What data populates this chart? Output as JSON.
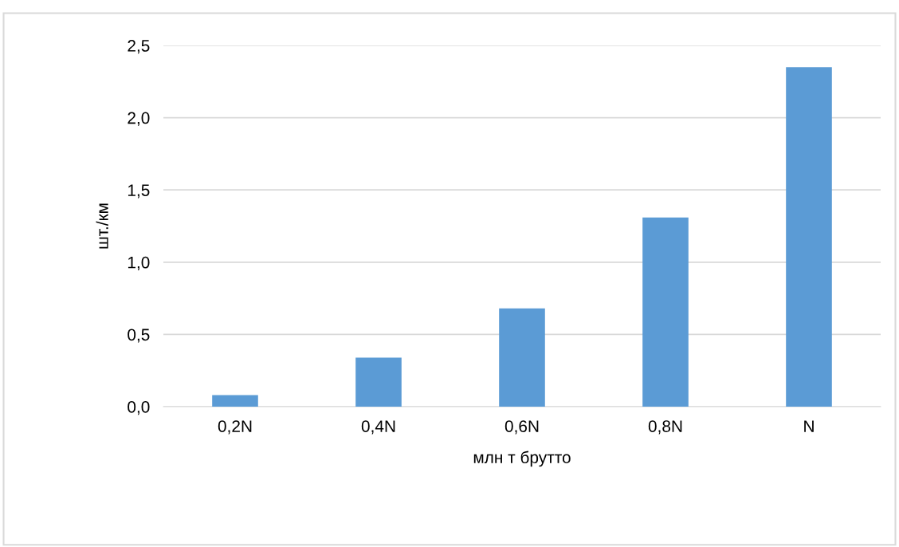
{
  "chart_data": {
    "type": "bar",
    "xlabel": "млн т брутто",
    "ylabel": "шт./км",
    "categories": [
      "0,2N",
      "0,4N",
      "0,6N",
      "0,8N",
      "N"
    ],
    "values": [
      0.08,
      0.34,
      0.68,
      1.31,
      2.35
    ],
    "color": "#5b9bd5",
    "ylim": [
      0,
      2.5
    ],
    "yticks": [
      {
        "value": 0,
        "label": "0,0"
      },
      {
        "value": 0.5,
        "label": "0,5"
      },
      {
        "value": 1.0,
        "label": "1,0"
      },
      {
        "value": 1.5,
        "label": "1,5"
      },
      {
        "value": 2.0,
        "label": "2,0"
      },
      {
        "value": 2.5,
        "label": "2,5"
      }
    ],
    "grid": "y",
    "legend": false
  }
}
